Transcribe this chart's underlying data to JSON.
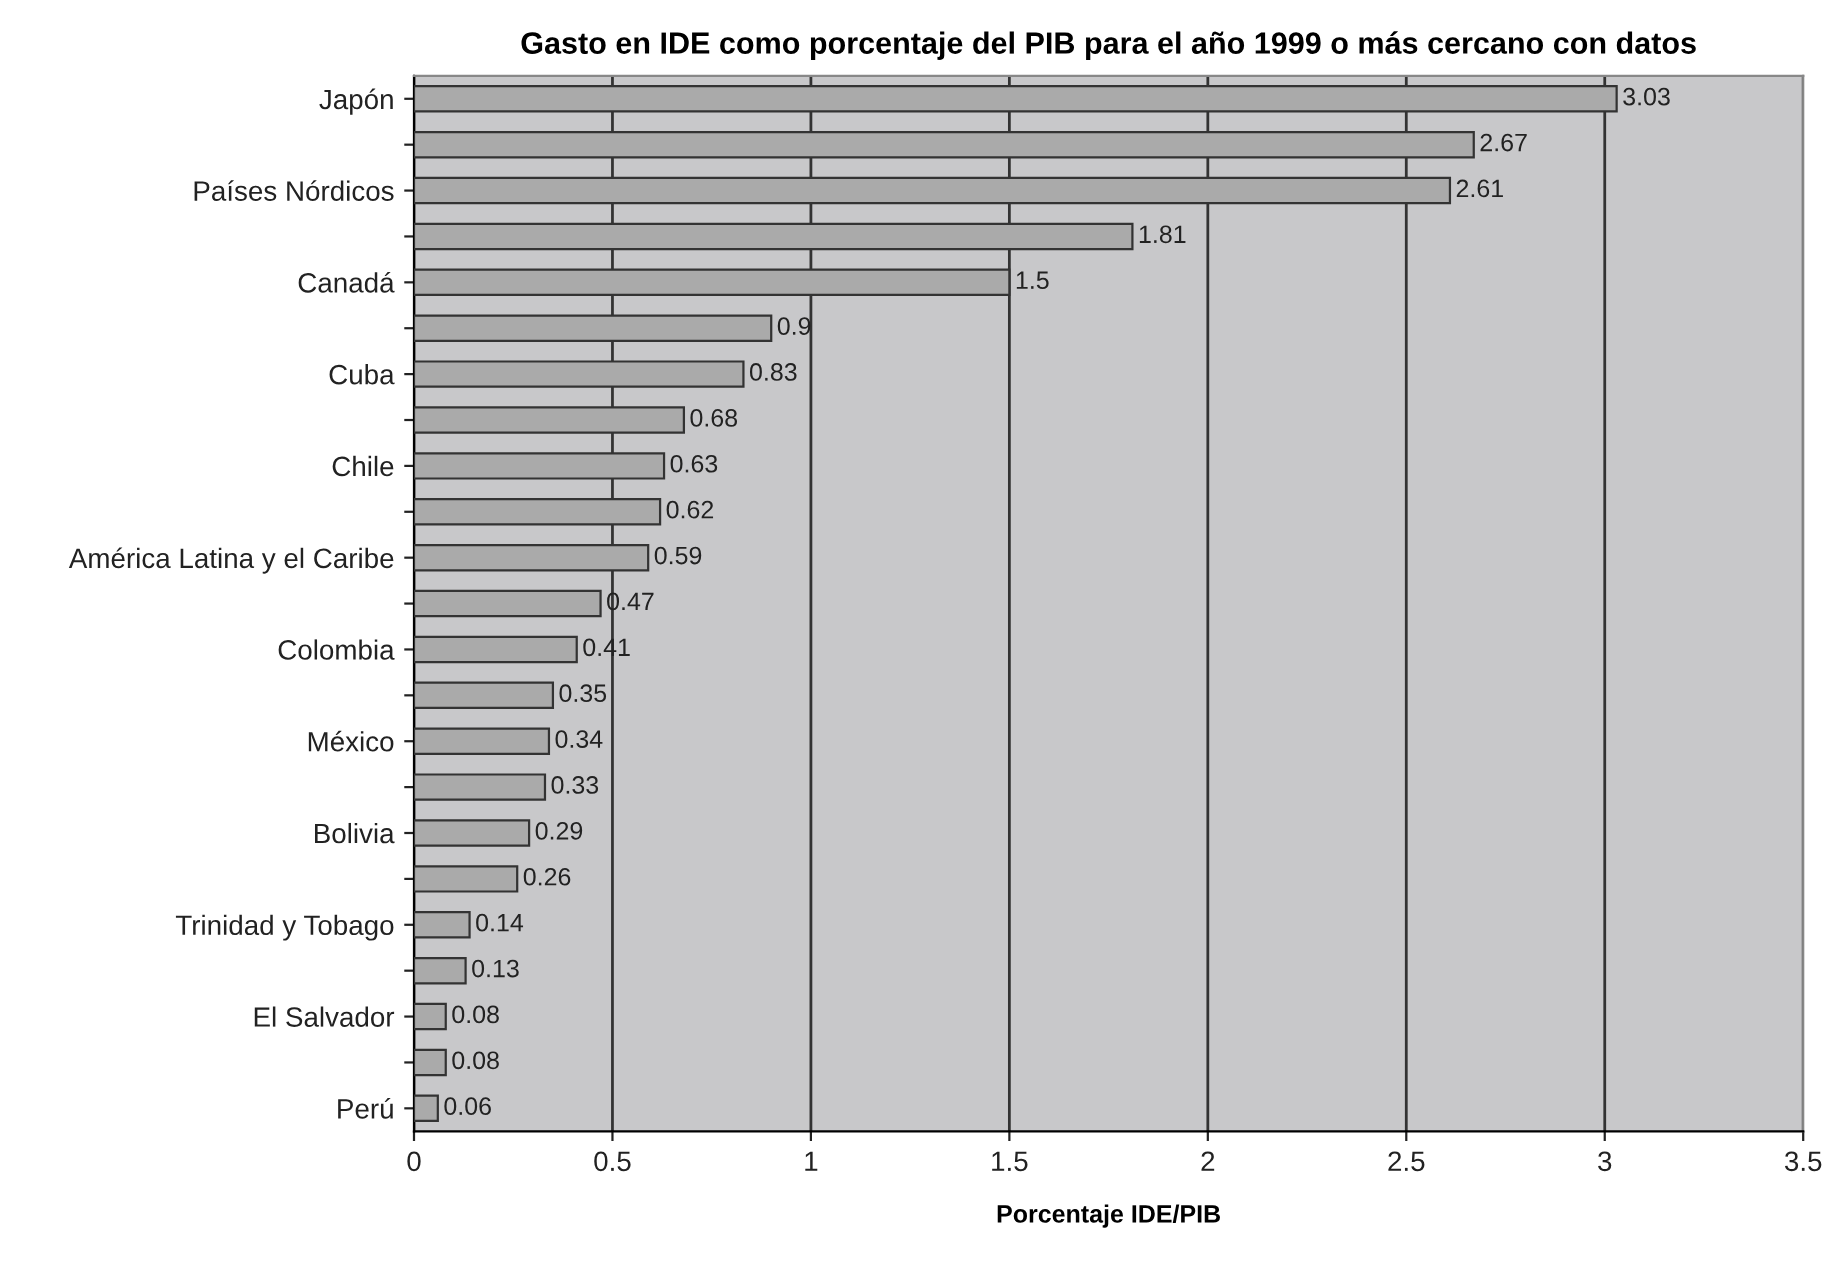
{
  "chart_data": {
    "type": "bar",
    "orientation": "horizontal",
    "title": "Gasto en IDE como porcentaje del PIB para el año 1999 o más cercano con datos",
    "xlabel": "Porcentaje IDE/PIB",
    "categories": [
      "Japón",
      null,
      "Países Nórdicos",
      null,
      "Canadá",
      null,
      "Cuba",
      null,
      "Chile",
      null,
      "América Latina y el Caribe",
      null,
      "Colombia",
      null,
      "México",
      null,
      "Bolivia",
      null,
      "Trinidad y Tobago",
      null,
      "El Salvador",
      null,
      "Perú"
    ],
    "values": [
      3.03,
      2.67,
      2.61,
      1.81,
      1.5,
      0.9,
      0.83,
      0.68,
      0.63,
      0.62,
      0.59,
      0.47,
      0.41,
      0.35,
      0.34,
      0.33,
      0.29,
      0.26,
      0.14,
      0.13,
      0.08,
      0.08,
      0.06
    ],
    "color": "#aaaaaa",
    "xlim": [
      0,
      3.5
    ],
    "xticks": [
      0,
      0.5,
      1,
      1.5,
      2,
      2.5,
      3,
      3.5
    ],
    "grid": "x",
    "data_labels": true
  }
}
